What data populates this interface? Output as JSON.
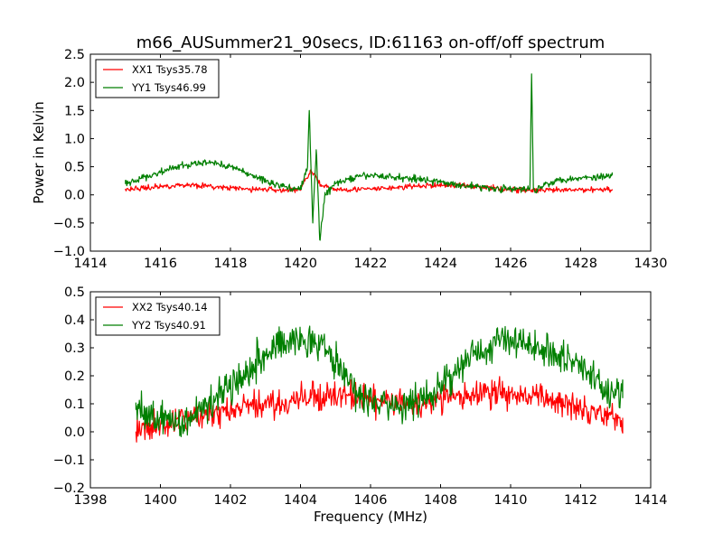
{
  "title": "m66_AUSummer21_90secs, ID:61163 on-off/off spectrum",
  "colors": {
    "xx": "#ff0000",
    "yy": "#007f00"
  },
  "chart_data": [
    {
      "type": "line",
      "ylabel": "Power in Kelvin",
      "xlabel": "",
      "xlim": [
        1414,
        1430
      ],
      "ylim": [
        -1.0,
        2.5
      ],
      "xticks": [
        "1414",
        "1416",
        "1418",
        "1420",
        "1422",
        "1424",
        "1426",
        "1428",
        "1430"
      ],
      "yticks": [
        "−1.0",
        "−0.5",
        "0.0",
        "0.5",
        "1.0",
        "1.5",
        "2.0",
        "2.5"
      ],
      "legend_position": "top-left",
      "series": [
        {
          "name": "XX1 Tsys35.78",
          "color": "#ff0000",
          "x": [
            1415.0,
            1415.5,
            1416.0,
            1416.5,
            1417.0,
            1417.5,
            1418.0,
            1418.5,
            1419.0,
            1419.5,
            1420.0,
            1420.3,
            1420.6,
            1421.0,
            1421.5,
            1422.0,
            1422.5,
            1423.0,
            1423.5,
            1424.0,
            1424.5,
            1425.0,
            1425.5,
            1426.0,
            1426.5,
            1427.0,
            1427.5,
            1428.0,
            1428.5,
            1428.9
          ],
          "y": [
            0.1,
            0.12,
            0.15,
            0.17,
            0.18,
            0.14,
            0.12,
            0.1,
            0.1,
            0.08,
            0.1,
            0.45,
            0.15,
            0.1,
            0.1,
            0.1,
            0.12,
            0.14,
            0.16,
            0.17,
            0.17,
            0.15,
            0.12,
            0.1,
            0.08,
            0.08,
            0.08,
            0.09,
            0.1,
            0.1
          ]
        },
        {
          "name": "YY1 Tsys46.99",
          "color": "#007f00",
          "x": [
            1415.0,
            1415.5,
            1416.0,
            1416.5,
            1417.0,
            1417.5,
            1418.0,
            1418.5,
            1419.0,
            1419.5,
            1420.0,
            1420.2,
            1420.25,
            1420.35,
            1420.45,
            1420.55,
            1420.7,
            1421.0,
            1421.5,
            1422.0,
            1422.5,
            1423.0,
            1423.5,
            1424.0,
            1424.5,
            1425.0,
            1425.5,
            1426.0,
            1426.4,
            1426.55,
            1426.6,
            1426.65,
            1426.75,
            1427.0,
            1427.5,
            1428.0,
            1428.5,
            1428.9
          ],
          "y": [
            0.2,
            0.3,
            0.4,
            0.5,
            0.55,
            0.58,
            0.5,
            0.38,
            0.25,
            0.15,
            0.1,
            0.5,
            1.5,
            -0.5,
            0.8,
            -0.8,
            0.0,
            0.2,
            0.3,
            0.35,
            0.32,
            0.3,
            0.28,
            0.22,
            0.18,
            0.15,
            0.12,
            0.1,
            0.1,
            0.1,
            2.15,
            0.1,
            0.1,
            0.2,
            0.28,
            0.3,
            0.32,
            0.35
          ]
        }
      ]
    },
    {
      "type": "line",
      "ylabel": "",
      "xlabel": "Frequency (MHz)",
      "xlim": [
        1398,
        1414
      ],
      "ylim": [
        -0.2,
        0.5
      ],
      "xticks": [
        "1398",
        "1400",
        "1402",
        "1404",
        "1406",
        "1408",
        "1410",
        "1412",
        "1414"
      ],
      "yticks": [
        "−0.2",
        "−0.1",
        "0.0",
        "0.1",
        "0.2",
        "0.3",
        "0.4",
        "0.5"
      ],
      "legend_position": "top-left",
      "series": [
        {
          "name": "XX2 Tsys40.14",
          "color": "#ff0000",
          "x": [
            1399.3,
            1399.8,
            1400.3,
            1400.8,
            1401.3,
            1401.8,
            1402.3,
            1402.8,
            1403.3,
            1403.8,
            1404.3,
            1404.8,
            1405.3,
            1405.8,
            1406.3,
            1406.8,
            1407.3,
            1407.8,
            1408.3,
            1408.8,
            1409.3,
            1409.8,
            1410.3,
            1410.8,
            1411.3,
            1411.8,
            1412.3,
            1412.8,
            1413.2
          ],
          "y": [
            0.0,
            0.02,
            0.03,
            0.05,
            0.06,
            0.07,
            0.08,
            0.1,
            0.1,
            0.11,
            0.12,
            0.13,
            0.13,
            0.12,
            0.11,
            0.1,
            0.1,
            0.11,
            0.12,
            0.13,
            0.14,
            0.14,
            0.13,
            0.12,
            0.11,
            0.1,
            0.08,
            0.06,
            0.05
          ]
        },
        {
          "name": "YY2 Tsys40.91",
          "color": "#007f00",
          "x": [
            1399.3,
            1399.8,
            1400.3,
            1400.8,
            1401.3,
            1401.8,
            1402.3,
            1402.8,
            1403.3,
            1403.8,
            1404.3,
            1404.8,
            1405.3,
            1405.8,
            1406.3,
            1406.8,
            1407.3,
            1407.8,
            1408.3,
            1408.8,
            1409.3,
            1409.8,
            1410.3,
            1410.8,
            1411.3,
            1411.8,
            1412.3,
            1412.8,
            1413.2
          ],
          "y": [
            0.08,
            0.05,
            0.03,
            0.05,
            0.1,
            0.15,
            0.2,
            0.26,
            0.3,
            0.34,
            0.33,
            0.28,
            0.2,
            0.12,
            0.1,
            0.08,
            0.1,
            0.14,
            0.2,
            0.26,
            0.3,
            0.34,
            0.32,
            0.3,
            0.28,
            0.25,
            0.2,
            0.15,
            0.12
          ]
        }
      ]
    }
  ]
}
